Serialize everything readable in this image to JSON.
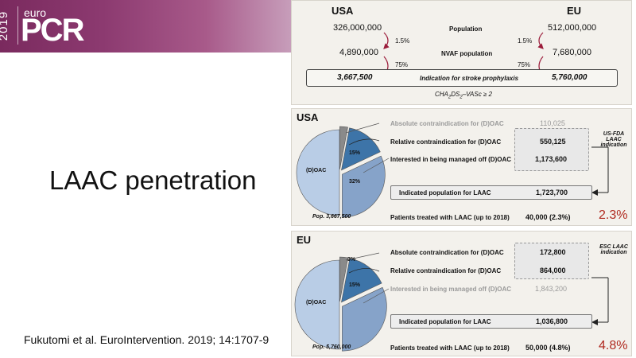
{
  "header": {
    "year": "2019",
    "logo_top": "euro",
    "logo_main": "PCR"
  },
  "slide": {
    "title": "LAAC penetration",
    "citation": "Fukutomi et al. EuroIntervention. 2019; 14:1707-9"
  },
  "top_panel": {
    "left_header": "USA",
    "right_header": "EU",
    "usa_population": "326,000,000",
    "eu_population": "512,000,000",
    "population_label": "Population",
    "usa_pct1": "1.5%",
    "eu_pct1": "1.5%",
    "usa_nvaf": "4,890,000",
    "eu_nvaf": "7,680,000",
    "nvaf_label": "NVAF population",
    "usa_pct2": "75%",
    "eu_pct2": "75%",
    "usa_indication": "3,667,500",
    "eu_indication": "5,760,000",
    "indication_label": "Indication for stroke prophylaxis",
    "score_prefix": "CHA",
    "score_sub1": "2",
    "score_mid": "DS",
    "score_sub2": "2",
    "score_suffix": "–VASc ≥ 2"
  },
  "usa_panel": {
    "header": "USA",
    "rows": [
      {
        "label": "Absolute contraindication for (D)OAC",
        "value": "110,025"
      },
      {
        "label": "Relative contraindication for (D)OAC",
        "value": "550,125"
      },
      {
        "label": "Interested in being managed off (D)OAC",
        "value": "1,173,600"
      }
    ],
    "indicated_label": "Indicated population for LAAC",
    "indicated_value": "1,723,700",
    "treated_label": "Patients treated with LAAC (up to 2018)",
    "treated_value": "40,000 (2.3%)",
    "penetration": "2.3%",
    "side_note": "US-FDA LAAC indication",
    "pop_label": "Pop. 3,667,500",
    "pie_labels": {
      "main": "(D)OAC",
      "relative": "15%",
      "interested": "32%"
    },
    "pie_values": [
      3,
      15,
      32,
      50
    ]
  },
  "eu_panel": {
    "header": "EU",
    "rows": [
      {
        "label": "Absolute contraindication for (D)OAC",
        "value": "172,800"
      },
      {
        "label": "Relative contraindication for (D)OAC",
        "value": "864,000"
      },
      {
        "label": "Interested in being managed off (D)OAC",
        "value": "1,843,200"
      }
    ],
    "indicated_label": "Indicated population for LAAC",
    "indicated_value": "1,036,800",
    "treated_label": "Patients treated with LAAC (up to 2018)",
    "treated_value": "50,000 (4.8%)",
    "penetration": "4.8%",
    "side_note": "ESC LAAC indication",
    "pop_label": "Pop. 5,760,000",
    "pie_labels": {
      "main": "(D)OAC",
      "absolute": "3%",
      "relative": "15%"
    },
    "pie_values": [
      3,
      15,
      32,
      50
    ]
  },
  "colors": {
    "banner": "#8c3a70",
    "arrow": "#9b1b3a",
    "pie_absolute": "#8a8a8a",
    "pie_relative": "#3d74a8",
    "pie_interested": "#86a3c9",
    "pie_main": "#b9cde6",
    "penetration": "#b0291f"
  }
}
